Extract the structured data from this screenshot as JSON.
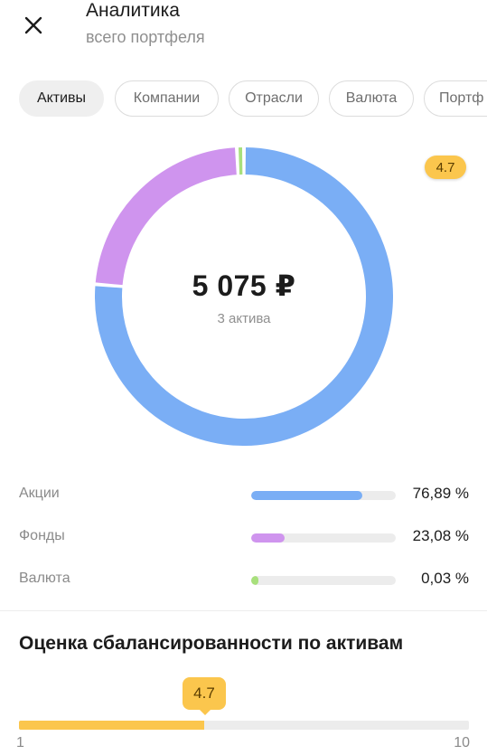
{
  "header": {
    "title": "Аналитика",
    "subtitle": "всего портфеля"
  },
  "tabs": [
    {
      "label": "Активы",
      "active": true
    },
    {
      "label": "Компании",
      "active": false
    },
    {
      "label": "Отрасли",
      "active": false
    },
    {
      "label": "Валюта",
      "active": false
    },
    {
      "label": "Портф",
      "active": false
    }
  ],
  "badge": "4.7",
  "summary": {
    "total": "5 075 ₽",
    "count": "3 актива"
  },
  "chart_data": {
    "type": "pie",
    "categories": [
      "Акции",
      "Фонды",
      "Валюта"
    ],
    "values": [
      76.89,
      23.08,
      0.03
    ],
    "colors": [
      "#7aaef5",
      "#cf94ee",
      "#a8e07c"
    ],
    "labels": [
      "76,89 %",
      "23,08 %",
      "0,03 %"
    ]
  },
  "section": {
    "title": "Оценка сбалансированности по активам"
  },
  "score": {
    "value": 4.7,
    "label": "4.7",
    "min": 1,
    "max": 10,
    "min_label": "1",
    "max_label": "10",
    "color": "#fbc64d"
  }
}
